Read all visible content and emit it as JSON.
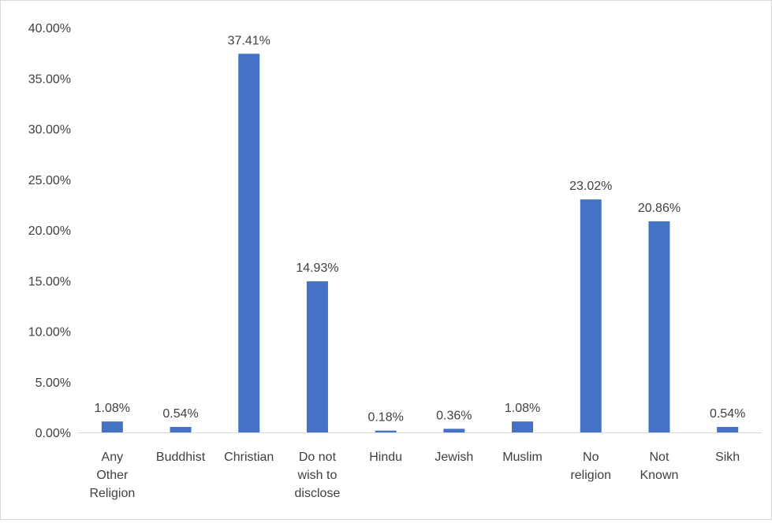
{
  "chart_data": {
    "type": "bar",
    "categories": [
      "Any Other Religion",
      "Buddhist",
      "Christian",
      "Do not wish to disclose",
      "Hindu",
      "Jewish",
      "Muslim",
      "No religion",
      "Not Known",
      "Sikh"
    ],
    "category_label_lines": [
      [
        "Any",
        "Other",
        "Religion"
      ],
      [
        "Buddhist"
      ],
      [
        "Christian"
      ],
      [
        "Do not",
        "wish to",
        "disclose"
      ],
      [
        "Hindu"
      ],
      [
        "Jewish"
      ],
      [
        "Muslim"
      ],
      [
        "No",
        "religion"
      ],
      [
        "Not",
        "Known"
      ],
      [
        "Sikh"
      ]
    ],
    "values": [
      1.08,
      0.54,
      37.41,
      14.93,
      0.18,
      0.36,
      1.08,
      23.02,
      20.86,
      0.54
    ],
    "data_labels": [
      "1.08%",
      "0.54%",
      "37.41%",
      "14.93%",
      "0.18%",
      "0.36%",
      "1.08%",
      "23.02%",
      "20.86%",
      "0.54%"
    ],
    "yticks": [
      0,
      5,
      10,
      15,
      20,
      25,
      30,
      35,
      40
    ],
    "ytick_labels": [
      "0.00%",
      "5.00%",
      "10.00%",
      "15.00%",
      "20.00%",
      "25.00%",
      "30.00%",
      "35.00%",
      "40.00%"
    ],
    "ylim": [
      0,
      40
    ],
    "title": "",
    "xlabel": "",
    "ylabel": "",
    "grid": false,
    "legend": "none",
    "bar_color": "#4472c4",
    "axis_color": "#d9d9d9"
  }
}
